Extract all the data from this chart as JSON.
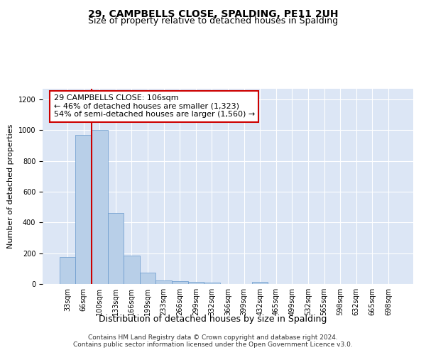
{
  "title": "29, CAMPBELLS CLOSE, SPALDING, PE11 2UH",
  "subtitle": "Size of property relative to detached houses in Spalding",
  "xlabel": "Distribution of detached houses by size in Spalding",
  "ylabel": "Number of detached properties",
  "categories": [
    "33sqm",
    "66sqm",
    "100sqm",
    "133sqm",
    "166sqm",
    "199sqm",
    "233sqm",
    "266sqm",
    "299sqm",
    "332sqm",
    "366sqm",
    "399sqm",
    "432sqm",
    "465sqm",
    "499sqm",
    "532sqm",
    "565sqm",
    "598sqm",
    "632sqm",
    "665sqm",
    "698sqm"
  ],
  "values": [
    175,
    970,
    1000,
    460,
    185,
    75,
    25,
    18,
    12,
    10,
    0,
    0,
    15,
    0,
    0,
    0,
    0,
    0,
    0,
    0,
    0
  ],
  "bar_color": "#b8cfe8",
  "bar_edgecolor": "#6699cc",
  "vline_x": 2.0,
  "vline_color": "#cc0000",
  "annotation_text": "29 CAMPBELLS CLOSE: 106sqm\n← 46% of detached houses are smaller (1,323)\n54% of semi-detached houses are larger (1,560) →",
  "annotation_box_edgecolor": "#cc0000",
  "annotation_box_facecolor": "#ffffff",
  "ylim": [
    0,
    1270
  ],
  "yticks": [
    0,
    200,
    400,
    600,
    800,
    1000,
    1200
  ],
  "background_color": "#dce6f5",
  "footer_text": "Contains HM Land Registry data © Crown copyright and database right 2024.\nContains public sector information licensed under the Open Government Licence v3.0.",
  "title_fontsize": 10,
  "subtitle_fontsize": 9,
  "xlabel_fontsize": 9,
  "ylabel_fontsize": 8,
  "tick_fontsize": 7,
  "annotation_fontsize": 8,
  "footer_fontsize": 6.5
}
